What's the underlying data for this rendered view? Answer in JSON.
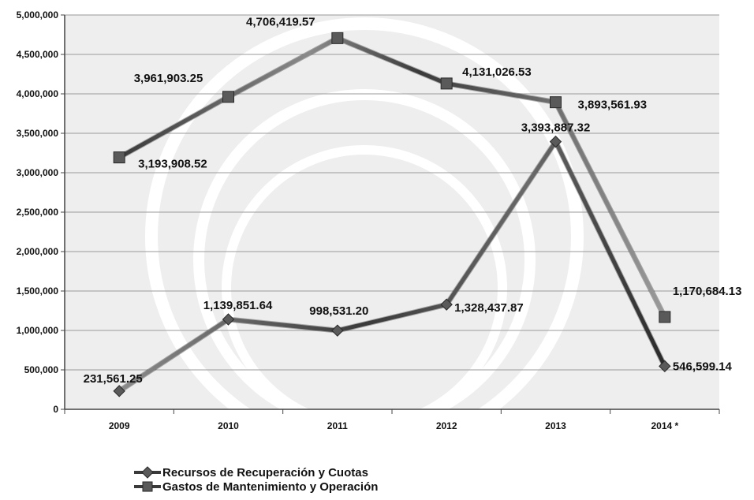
{
  "chart_data": {
    "type": "line",
    "categories": [
      "2009",
      "2010",
      "2011",
      "2012",
      "2013",
      "2014 *"
    ],
    "ylim": [
      0,
      5000000
    ],
    "yticks": [
      "0",
      "500,000",
      "1,000,000",
      "1,500,000",
      "2,000,000",
      "2,500,000",
      "3,000,000",
      "3,500,000",
      "4,000,000",
      "4,500,000",
      "5,000,000"
    ],
    "grid": true,
    "legend_position": "bottom-left",
    "series": [
      {
        "name": "Recursos de Recuperación y Cuotas",
        "marker": "diamond",
        "values": [
          231561.25,
          1139851.64,
          998531.2,
          1328437.87,
          3393887.32,
          546599.14
        ],
        "labels": [
          "231,561.25",
          "1,139,851.64",
          "998,531.20",
          "1,328,437.87",
          "3,393,887.32",
          "546,599.14"
        ]
      },
      {
        "name": "Gastos de Mantenimiento y Operación",
        "marker": "square",
        "values": [
          3193908.52,
          3961903.25,
          4706419.57,
          4131026.53,
          3893561.93,
          1170684.13
        ],
        "labels": [
          "3,193,908.52",
          "3,961,903.25",
          "4,706,419.57",
          "4,131,026.53",
          "3,893,561.93",
          "1,170,684.13"
        ]
      }
    ],
    "colors": {
      "plot_bg": "#eeeeee",
      "grid": "#9a9a9a",
      "line_light": "#8c8c8c",
      "line_dark": "#2a2a2a",
      "marker": "#5a5a5a"
    }
  }
}
